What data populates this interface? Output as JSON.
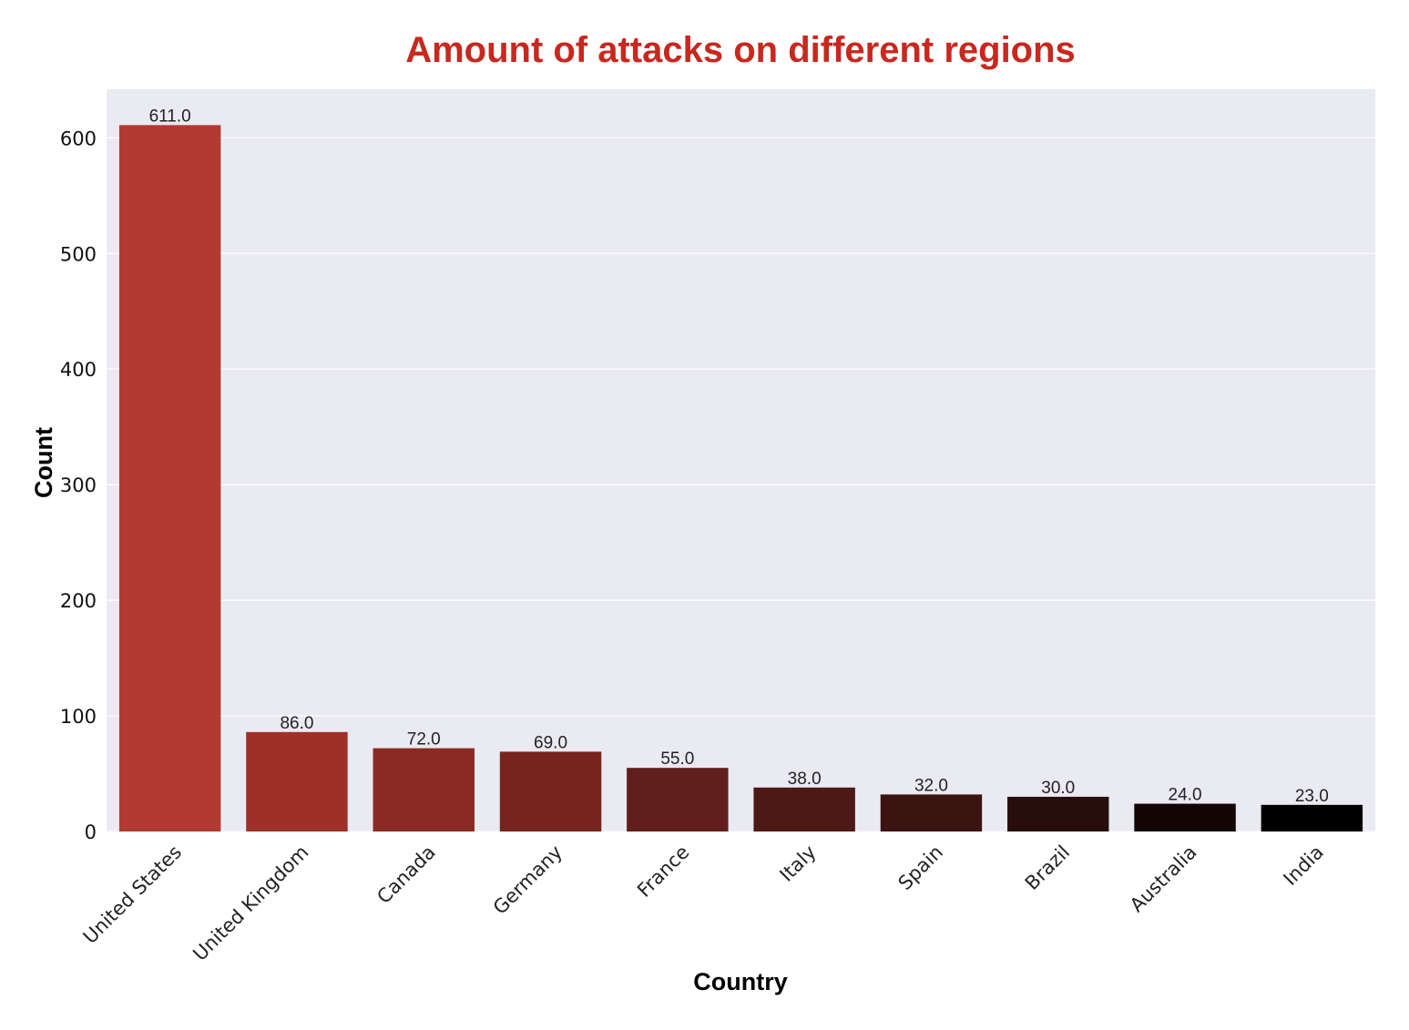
{
  "chart_data": {
    "type": "bar",
    "title": "Amount of attacks on different regions",
    "xlabel": "Country",
    "ylabel": "Count",
    "categories": [
      "United States",
      "United Kingdom",
      "Canada",
      "Germany",
      "France",
      "Italy",
      "Spain",
      "Brazil",
      "Australia",
      "India"
    ],
    "values": [
      611,
      86,
      72,
      69,
      55,
      38,
      32,
      30,
      24,
      23
    ],
    "data_labels": [
      "611.0",
      "86.0",
      "72.0",
      "69.0",
      "55.0",
      "38.0",
      "32.0",
      "30.0",
      "24.0",
      "23.0"
    ],
    "ylim": [
      0,
      642
    ],
    "yticks": [
      0,
      100,
      200,
      300,
      400,
      500,
      600
    ],
    "grid": true,
    "colors": {
      "title": "#c8281e",
      "plot_background": "#eaeaf2",
      "grid": "#ffffff",
      "bars": [
        "#b23a31",
        "#9e3029",
        "#8b2a24",
        "#77241f",
        "#621e1a",
        "#4e1815",
        "#3b1310",
        "#270d0b",
        "#140605",
        "#000000"
      ]
    }
  }
}
